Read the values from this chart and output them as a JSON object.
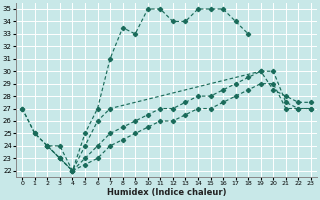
{
  "xlabel": "Humidex (Indice chaleur)",
  "bg_color": "#c8e8e8",
  "grid_color": "#ffffff",
  "line_color": "#1a6b5a",
  "xlim": [
    -0.5,
    23.5
  ],
  "ylim": [
    21.5,
    35.5
  ],
  "xticks": [
    0,
    1,
    2,
    3,
    4,
    5,
    6,
    7,
    8,
    9,
    10,
    11,
    12,
    13,
    14,
    15,
    16,
    17,
    18,
    19,
    20,
    21,
    22,
    23
  ],
  "yticks": [
    22,
    23,
    24,
    25,
    26,
    27,
    28,
    29,
    30,
    31,
    32,
    33,
    34,
    35
  ],
  "lines": [
    {
      "x": [
        0,
        1,
        2,
        3,
        4,
        5,
        6,
        7,
        8,
        9,
        10,
        11,
        12,
        13,
        14,
        15,
        16,
        17,
        18
      ],
      "y": [
        27,
        25,
        24,
        24,
        22,
        25,
        27,
        31,
        33.5,
        33,
        35,
        35,
        34,
        34,
        35,
        35,
        35,
        34,
        33
      ]
    },
    {
      "x": [
        0,
        1,
        2,
        3,
        4,
        5,
        6,
        7,
        19,
        20,
        21,
        22,
        23
      ],
      "y": [
        27,
        25,
        24,
        23,
        22,
        24,
        26,
        27,
        30,
        28.5,
        28,
        27.5,
        27.5
      ]
    },
    {
      "x": [
        2,
        3,
        4,
        5,
        6,
        7,
        8,
        9,
        10,
        11,
        12,
        13,
        14,
        15,
        16,
        17,
        18,
        19,
        20,
        21,
        22,
        23
      ],
      "y": [
        24,
        23,
        22,
        23,
        24,
        25,
        25.5,
        26,
        26.5,
        27,
        27,
        27.5,
        28,
        28,
        28.5,
        29,
        29.5,
        30,
        30,
        27.5,
        27,
        27
      ]
    },
    {
      "x": [
        2,
        3,
        4,
        5,
        6,
        7,
        8,
        9,
        10,
        11,
        12,
        13,
        14,
        15,
        16,
        17,
        18,
        19,
        20,
        21,
        22,
        23
      ],
      "y": [
        24,
        23,
        22,
        22.5,
        23,
        24,
        24.5,
        25,
        25.5,
        26,
        26,
        26.5,
        27,
        27,
        27.5,
        28,
        28.5,
        29,
        29,
        27,
        27,
        27
      ]
    }
  ]
}
